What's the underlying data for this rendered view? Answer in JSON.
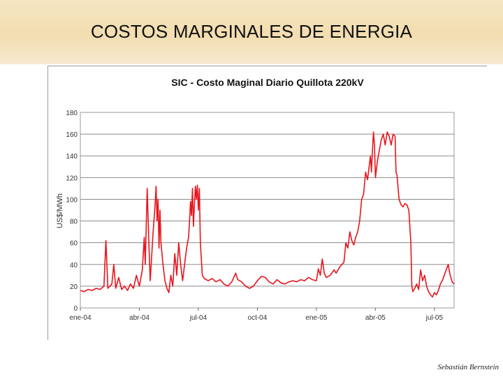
{
  "slide": {
    "title": "COSTOS MARGINALES DE ENERGIA",
    "author": "Sebastián Bernstein"
  },
  "chart_data": {
    "type": "line",
    "title": "SIC - Costo Maginal Diario Quillota 220kV",
    "xlabel": "",
    "ylabel": "US$/MWh",
    "ylim": [
      0,
      180
    ],
    "yticks": [
      "0",
      "20",
      "40",
      "60",
      "80",
      "100",
      "120",
      "140",
      "160",
      "180"
    ],
    "xticks": [
      "ene-04",
      "abr-04",
      "jul-04",
      "oct-04",
      "ene-05",
      "abr-05",
      "jul-05"
    ],
    "grid": true,
    "color": "#e8141c",
    "series": [
      {
        "name": "Costo marginal diario Quillota 220kV",
        "x_unit": "months since ene-04",
        "points": [
          [
            0.0,
            16
          ],
          [
            0.2,
            15
          ],
          [
            0.4,
            17
          ],
          [
            0.6,
            16
          ],
          [
            0.8,
            18
          ],
          [
            1.0,
            17
          ],
          [
            1.2,
            20
          ],
          [
            1.3,
            62
          ],
          [
            1.4,
            18
          ],
          [
            1.6,
            22
          ],
          [
            1.7,
            40
          ],
          [
            1.8,
            18
          ],
          [
            1.95,
            28
          ],
          [
            2.1,
            17
          ],
          [
            2.25,
            20
          ],
          [
            2.4,
            16
          ],
          [
            2.55,
            22
          ],
          [
            2.7,
            18
          ],
          [
            2.85,
            30
          ],
          [
            3.0,
            20
          ],
          [
            3.15,
            35
          ],
          [
            3.25,
            65
          ],
          [
            3.3,
            40
          ],
          [
            3.4,
            110
          ],
          [
            3.5,
            50
          ],
          [
            3.55,
            25
          ],
          [
            3.6,
            40
          ],
          [
            3.7,
            70
          ],
          [
            3.8,
            95
          ],
          [
            3.85,
            112
          ],
          [
            3.9,
            80
          ],
          [
            3.95,
            100
          ],
          [
            4.0,
            55
          ],
          [
            4.05,
            90
          ],
          [
            4.1,
            60
          ],
          [
            4.2,
            40
          ],
          [
            4.3,
            25
          ],
          [
            4.4,
            18
          ],
          [
            4.5,
            14
          ],
          [
            4.6,
            30
          ],
          [
            4.7,
            20
          ],
          [
            4.8,
            50
          ],
          [
            4.9,
            30
          ],
          [
            5.0,
            60
          ],
          [
            5.1,
            40
          ],
          [
            5.2,
            25
          ],
          [
            5.3,
            40
          ],
          [
            5.4,
            55
          ],
          [
            5.5,
            65
          ],
          [
            5.55,
            80
          ],
          [
            5.6,
            98
          ],
          [
            5.65,
            85
          ],
          [
            5.7,
            110
          ],
          [
            5.75,
            75
          ],
          [
            5.8,
            95
          ],
          [
            5.85,
            112
          ],
          [
            5.9,
            100
          ],
          [
            5.95,
            113
          ],
          [
            6.0,
            90
          ],
          [
            6.05,
            110
          ],
          [
            6.1,
            60
          ],
          [
            6.2,
            30
          ],
          [
            6.3,
            27
          ],
          [
            6.5,
            25
          ],
          [
            6.7,
            27
          ],
          [
            6.9,
            24
          ],
          [
            7.1,
            26
          ],
          [
            7.3,
            22
          ],
          [
            7.5,
            20
          ],
          [
            7.7,
            24
          ],
          [
            7.9,
            32
          ],
          [
            8.0,
            26
          ],
          [
            8.2,
            24
          ],
          [
            8.4,
            20
          ],
          [
            8.6,
            18
          ],
          [
            8.8,
            20
          ],
          [
            9.0,
            25
          ],
          [
            9.2,
            29
          ],
          [
            9.4,
            28
          ],
          [
            9.6,
            24
          ],
          [
            9.8,
            22
          ],
          [
            10.0,
            26
          ],
          [
            10.2,
            23
          ],
          [
            10.4,
            22
          ],
          [
            10.6,
            24
          ],
          [
            10.8,
            25
          ],
          [
            11.0,
            24
          ],
          [
            11.2,
            26
          ],
          [
            11.4,
            25
          ],
          [
            11.6,
            28
          ],
          [
            11.8,
            26
          ],
          [
            12.0,
            25
          ],
          [
            12.1,
            36
          ],
          [
            12.2,
            30
          ],
          [
            12.3,
            45
          ],
          [
            12.4,
            32
          ],
          [
            12.5,
            28
          ],
          [
            12.7,
            30
          ],
          [
            12.9,
            35
          ],
          [
            13.0,
            32
          ],
          [
            13.2,
            38
          ],
          [
            13.4,
            42
          ],
          [
            13.5,
            60
          ],
          [
            13.6,
            55
          ],
          [
            13.7,
            70
          ],
          [
            13.8,
            62
          ],
          [
            13.9,
            58
          ],
          [
            14.0,
            65
          ],
          [
            14.1,
            70
          ],
          [
            14.2,
            80
          ],
          [
            14.3,
            100
          ],
          [
            14.4,
            105
          ],
          [
            14.5,
            125
          ],
          [
            14.6,
            118
          ],
          [
            14.7,
            133
          ],
          [
            14.75,
            140
          ],
          [
            14.8,
            125
          ],
          [
            14.85,
            145
          ],
          [
            14.9,
            162
          ],
          [
            14.95,
            150
          ],
          [
            15.0,
            120
          ],
          [
            15.1,
            135
          ],
          [
            15.2,
            145
          ],
          [
            15.3,
            155
          ],
          [
            15.4,
            160
          ],
          [
            15.5,
            150
          ],
          [
            15.6,
            162
          ],
          [
            15.7,
            158
          ],
          [
            15.8,
            150
          ],
          [
            15.9,
            160
          ],
          [
            16.0,
            158
          ],
          [
            16.05,
            125
          ],
          [
            16.1,
            122
          ],
          [
            16.2,
            100
          ],
          [
            16.3,
            95
          ],
          [
            16.4,
            93
          ],
          [
            16.5,
            96
          ],
          [
            16.6,
            95
          ],
          [
            16.7,
            90
          ],
          [
            16.8,
            60
          ],
          [
            16.85,
            20
          ],
          [
            16.9,
            15
          ],
          [
            17.0,
            18
          ],
          [
            17.1,
            22
          ],
          [
            17.2,
            17
          ],
          [
            17.3,
            35
          ],
          [
            17.4,
            25
          ],
          [
            17.5,
            30
          ],
          [
            17.6,
            20
          ],
          [
            17.7,
            15
          ],
          [
            17.8,
            12
          ],
          [
            17.9,
            10
          ],
          [
            18.0,
            14
          ],
          [
            18.1,
            12
          ],
          [
            18.2,
            16
          ],
          [
            18.3,
            22
          ],
          [
            18.4,
            25
          ],
          [
            18.5,
            30
          ],
          [
            18.6,
            35
          ],
          [
            18.7,
            40
          ],
          [
            18.8,
            30
          ],
          [
            18.9,
            24
          ],
          [
            19.0,
            22
          ]
        ]
      }
    ]
  }
}
